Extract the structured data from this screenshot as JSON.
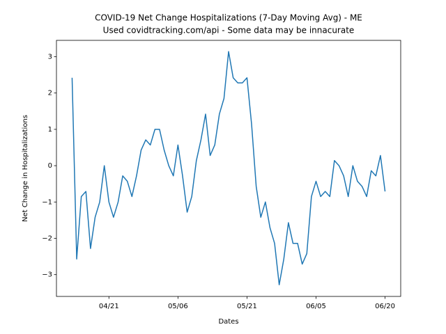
{
  "chart_data": {
    "type": "line",
    "title": "COVID-19 Net Change Hospitalizations (7-Day Moving Avg) - ME",
    "subtitle": "Used covidtracking.com/api - Some data may be innacurate",
    "x_label": "Dates",
    "y_label": "Net Change in Hospitalizations",
    "x": [
      "04/13",
      "04/14",
      "04/15",
      "04/16",
      "04/17",
      "04/18",
      "04/19",
      "04/20",
      "04/21",
      "04/22",
      "04/23",
      "04/24",
      "04/25",
      "04/26",
      "04/27",
      "04/28",
      "04/29",
      "04/30",
      "05/01",
      "05/02",
      "05/03",
      "05/04",
      "05/05",
      "05/06",
      "05/07",
      "05/08",
      "05/09",
      "05/10",
      "05/11",
      "05/12",
      "05/13",
      "05/14",
      "05/15",
      "05/16",
      "05/17",
      "05/18",
      "05/19",
      "05/20",
      "05/21",
      "05/22",
      "05/23",
      "05/24",
      "05/25",
      "05/26",
      "05/27",
      "05/28",
      "05/29",
      "05/30",
      "05/31",
      "06/01",
      "06/02",
      "06/03",
      "06/04",
      "06/05",
      "06/06",
      "06/07",
      "06/08",
      "06/09",
      "06/10",
      "06/11",
      "06/12",
      "06/13",
      "06/14",
      "06/15",
      "06/16",
      "06/17",
      "06/18",
      "06/19",
      "06/20"
    ],
    "series": [
      {
        "color": "#1f77b4",
        "values": [
          2.42,
          -2.57,
          -0.85,
          -0.71,
          -2.28,
          -1.42,
          -1.0,
          0.0,
          -1.0,
          -1.42,
          -1.0,
          -0.28,
          -0.43,
          -0.85,
          -0.28,
          0.43,
          0.71,
          0.57,
          1.0,
          1.0,
          0.43,
          0.0,
          -0.28,
          0.57,
          -0.28,
          -1.28,
          -0.85,
          0.14,
          0.71,
          1.42,
          0.28,
          0.57,
          1.42,
          1.85,
          3.14,
          2.42,
          2.28,
          2.28,
          2.42,
          1.14,
          -0.57,
          -1.42,
          -1.0,
          -1.71,
          -2.14,
          -3.28,
          -2.57,
          -1.57,
          -2.14,
          -2.14,
          -2.71,
          -2.42,
          -0.85,
          -0.43,
          -0.85,
          -0.71,
          -0.85,
          0.14,
          0.0,
          -0.28,
          -0.85,
          0.0,
          -0.43,
          -0.57,
          -0.85,
          -0.14,
          -0.28,
          0.28,
          -0.71
        ]
      }
    ],
    "xticks": [
      "04/21",
      "05/06",
      "05/21",
      "06/05",
      "06/20"
    ],
    "ylim": [
      -3.6,
      3.45
    ],
    "yticks": [
      {
        "value": -3,
        "label": "−3"
      },
      {
        "value": -2,
        "label": "−2"
      },
      {
        "value": -1,
        "label": "−1"
      },
      0,
      1,
      2,
      3
    ]
  }
}
